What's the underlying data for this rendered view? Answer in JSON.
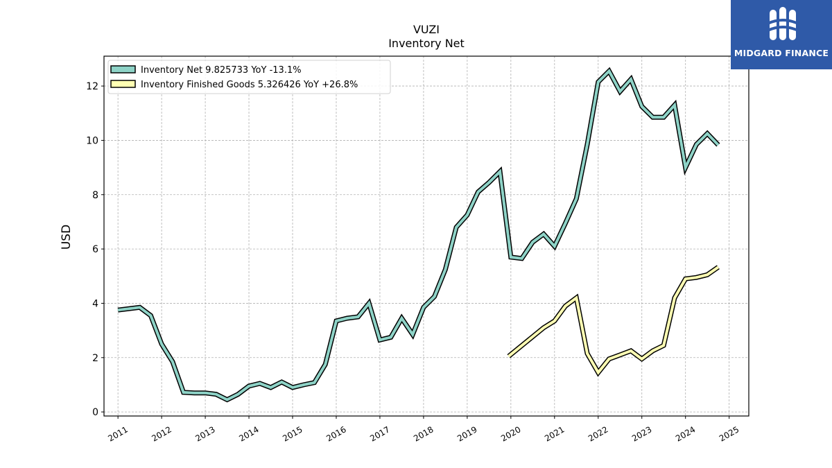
{
  "chart_data": {
    "type": "line",
    "title": "VUZI",
    "subtitle": "Inventory Net",
    "ylabel": "USD",
    "xlabel": "",
    "ylim": [
      -0.15,
      13.1
    ],
    "yticks": [
      0,
      2,
      4,
      6,
      8,
      10,
      12
    ],
    "xlim": [
      2010.68,
      2025.45
    ],
    "xticks": [
      2011,
      2012,
      2013,
      2014,
      2015,
      2016,
      2017,
      2018,
      2019,
      2020,
      2021,
      2022,
      2023,
      2024,
      2025
    ],
    "grid": true,
    "legend_position": "top-left",
    "series": [
      {
        "name": "Inventory Net",
        "legend_label": "Inventory Net  9.825733 YoY -13.1%",
        "color": "#8ed3c7",
        "points": [
          [
            2011.0,
            3.75
          ],
          [
            2011.5,
            3.85
          ],
          [
            2011.75,
            3.55
          ],
          [
            2012.0,
            2.5
          ],
          [
            2012.25,
            1.85
          ],
          [
            2012.5,
            0.72
          ],
          [
            2012.75,
            0.7
          ],
          [
            2013.0,
            0.7
          ],
          [
            2013.25,
            0.65
          ],
          [
            2013.5,
            0.45
          ],
          [
            2013.75,
            0.65
          ],
          [
            2014.0,
            0.95
          ],
          [
            2014.25,
            1.05
          ],
          [
            2014.5,
            0.9
          ],
          [
            2014.75,
            1.1
          ],
          [
            2015.0,
            0.9
          ],
          [
            2015.25,
            1.0
          ],
          [
            2015.5,
            1.08
          ],
          [
            2015.75,
            1.75
          ],
          [
            2016.0,
            3.35
          ],
          [
            2016.25,
            3.45
          ],
          [
            2016.5,
            3.5
          ],
          [
            2016.75,
            4.0
          ],
          [
            2017.0,
            2.65
          ],
          [
            2017.25,
            2.75
          ],
          [
            2017.5,
            3.45
          ],
          [
            2017.75,
            2.85
          ],
          [
            2018.0,
            3.85
          ],
          [
            2018.25,
            4.25
          ],
          [
            2018.5,
            5.25
          ],
          [
            2018.75,
            6.8
          ],
          [
            2019.0,
            7.25
          ],
          [
            2019.25,
            8.1
          ],
          [
            2019.5,
            8.45
          ],
          [
            2019.75,
            8.85
          ],
          [
            2020.0,
            5.7
          ],
          [
            2020.25,
            5.65
          ],
          [
            2020.5,
            6.25
          ],
          [
            2020.75,
            6.55
          ],
          [
            2021.0,
            6.1
          ],
          [
            2021.25,
            6.95
          ],
          [
            2021.5,
            7.85
          ],
          [
            2021.75,
            9.85
          ],
          [
            2022.0,
            12.15
          ],
          [
            2022.25,
            12.55
          ],
          [
            2022.5,
            11.8
          ],
          [
            2022.75,
            12.25
          ],
          [
            2023.0,
            11.25
          ],
          [
            2023.25,
            10.85
          ],
          [
            2023.5,
            10.85
          ],
          [
            2023.75,
            11.3
          ],
          [
            2024.0,
            9.0
          ],
          [
            2024.25,
            9.85
          ],
          [
            2024.5,
            10.25
          ],
          [
            2024.75,
            9.83
          ]
        ]
      },
      {
        "name": "Inventory Finished Goods",
        "legend_label": "Inventory Finished Goods  5.326426 YoY +26.8%",
        "color": "#ffffb3",
        "points": [
          [
            2019.95,
            2.05
          ],
          [
            2020.75,
            3.1
          ],
          [
            2021.0,
            3.35
          ],
          [
            2021.25,
            3.9
          ],
          [
            2021.5,
            4.2
          ],
          [
            2021.75,
            2.15
          ],
          [
            2022.0,
            1.45
          ],
          [
            2022.25,
            1.95
          ],
          [
            2022.5,
            2.1
          ],
          [
            2022.75,
            2.25
          ],
          [
            2023.0,
            1.95
          ],
          [
            2023.25,
            2.25
          ],
          [
            2023.5,
            2.45
          ],
          [
            2023.75,
            4.2
          ],
          [
            2024.0,
            4.9
          ],
          [
            2024.25,
            4.95
          ],
          [
            2024.5,
            5.05
          ],
          [
            2024.75,
            5.33
          ]
        ]
      }
    ]
  },
  "logo": {
    "text": "MIDGARD FINANCE",
    "color": "#2f5aa8"
  }
}
